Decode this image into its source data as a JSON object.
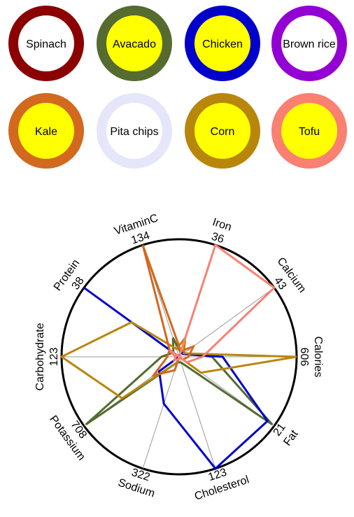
{
  "chart_data": {
    "type": "radar",
    "foods": [
      {
        "name": "Spinach",
        "color": "#8b0000",
        "fill": "#ffffff"
      },
      {
        "name": "Avacado",
        "color": "#556b2f",
        "fill": "#ffff00"
      },
      {
        "name": "Chicken",
        "color": "#0000cd",
        "fill": "#ffff00"
      },
      {
        "name": "Brown rice",
        "color": "#9400d3",
        "fill": "#ffffff"
      },
      {
        "name": "Kale",
        "color": "#d2691e",
        "fill": "#ffff00"
      },
      {
        "name": "Pita chips",
        "color": "#e6e6fa",
        "fill": "#ffffff"
      },
      {
        "name": "Corn",
        "color": "#b8860b",
        "fill": "#ffff00"
      },
      {
        "name": "Tofu",
        "color": "#fa8072",
        "fill": "#ffff00"
      }
    ],
    "axes": [
      {
        "name": "Calories",
        "max": "606"
      },
      {
        "name": "Fat",
        "max": "21"
      },
      {
        "name": "Cholesterol",
        "max": "123"
      },
      {
        "name": "Sodium",
        "max": "322"
      },
      {
        "name": "Potassium",
        "max": "708"
      },
      {
        "name": "Carbohydrate",
        "max": "123"
      },
      {
        "name": "Protein",
        "max": "38"
      },
      {
        "name": "VitaminC",
        "max": "134"
      },
      {
        "name": "Iron",
        "max": "36"
      },
      {
        "name": "Calcium",
        "max": "43"
      }
    ],
    "series": [
      {
        "name": "Avacado",
        "color": "#556b2f",
        "values": [
          0.28,
          0.98,
          0.05,
          0.05,
          0.98,
          0.15,
          0.06,
          0.17,
          0.04,
          0.05
        ]
      },
      {
        "name": "Chicken",
        "color": "#0000cd",
        "values": [
          0.37,
          0.93,
          1.0,
          0.42,
          0.21,
          0.0,
          1.0,
          0.0,
          0.05,
          0.04
        ]
      },
      {
        "name": "Corn",
        "color": "#b8860b",
        "values": [
          1.0,
          0.23,
          0.0,
          0.05,
          0.6,
          1.0,
          0.5,
          0.07,
          0.17,
          0.05
        ]
      },
      {
        "name": "Kale",
        "color": "#d2691e",
        "values": [
          0.08,
          0.04,
          0.0,
          0.12,
          0.27,
          0.1,
          0.1,
          1.0,
          0.05,
          0.15
        ]
      },
      {
        "name": "Tofu",
        "color": "#fa8072",
        "values": [
          0.2,
          0.08,
          0.0,
          0.02,
          0.05,
          0.03,
          0.1,
          0.0,
          1.0,
          1.0
        ]
      }
    ]
  }
}
